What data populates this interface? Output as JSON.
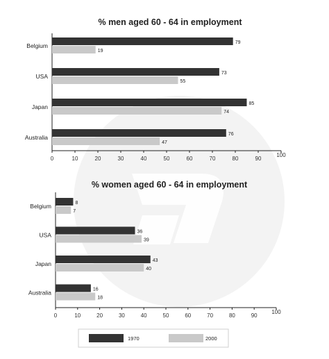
{
  "colors": {
    "series_1970": "#333333",
    "series_2000": "#c9c9c9",
    "axis": "#222222",
    "watermark": "#f1f1f1"
  },
  "legend": {
    "items": [
      "1970",
      "2000"
    ]
  },
  "chart_data": [
    {
      "type": "bar",
      "orientation": "horizontal",
      "title": "% men aged 60 - 64 in employment",
      "categories": [
        "Belgium",
        "USA",
        "Japan",
        "Australia"
      ],
      "series": [
        {
          "name": "1970",
          "values": [
            79,
            73,
            85,
            76
          ]
        },
        {
          "name": "2000",
          "values": [
            19,
            55,
            74,
            47
          ]
        }
      ],
      "xlim": [
        0,
        100
      ],
      "xticks": [
        0,
        10,
        20,
        30,
        40,
        50,
        60,
        70,
        80,
        90,
        100
      ],
      "xlabel": "",
      "ylabel": "",
      "grid": false
    },
    {
      "type": "bar",
      "orientation": "horizontal",
      "title": "% women aged 60 - 64 in employment",
      "categories": [
        "Belgium",
        "USA",
        "Japan",
        "Australia"
      ],
      "series": [
        {
          "name": "1970",
          "values": [
            8,
            36,
            43,
            16
          ]
        },
        {
          "name": "2000",
          "values": [
            7,
            39,
            40,
            18
          ]
        }
      ],
      "xlim": [
        0,
        100
      ],
      "xticks": [
        0,
        10,
        20,
        30,
        40,
        50,
        60,
        70,
        80,
        90,
        100
      ],
      "xlabel": "",
      "ylabel": "",
      "grid": false
    }
  ]
}
